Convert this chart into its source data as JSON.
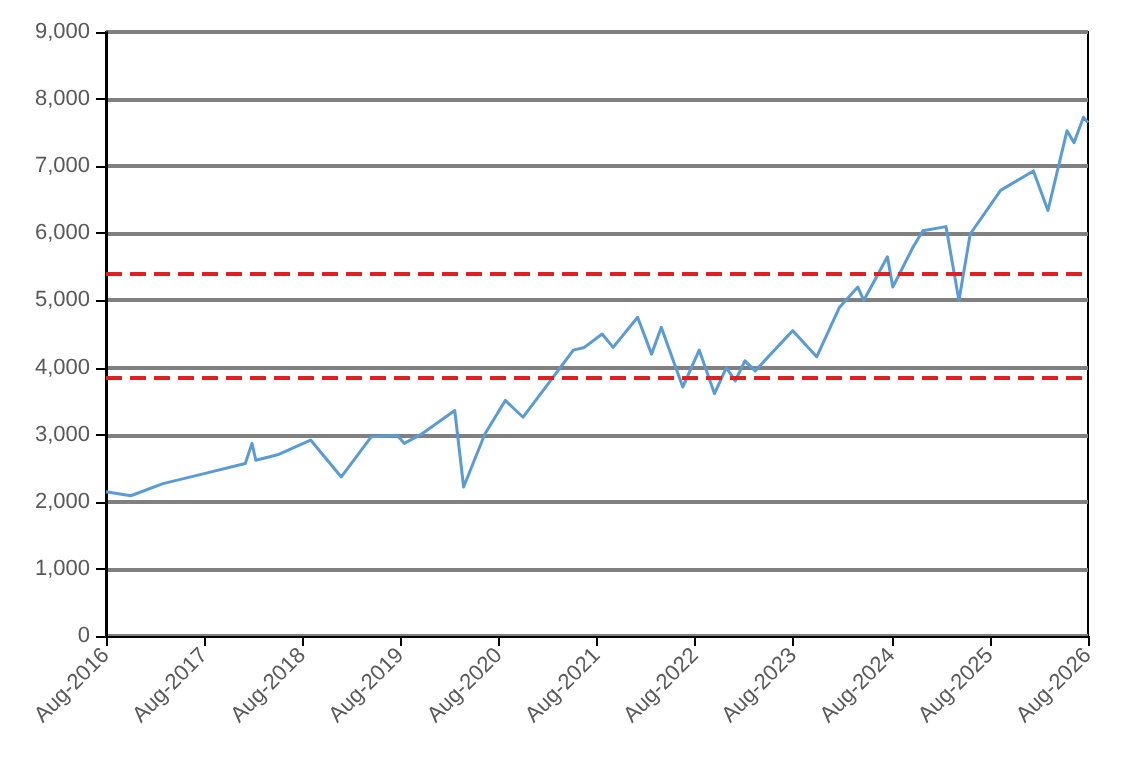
{
  "chart_data": {
    "type": "line",
    "x": [
      "2016-08-01",
      "2016-11-01",
      "2017-03-01",
      "2017-08-01",
      "2018-01-01",
      "2018-01-26",
      "2018-02-09",
      "2018-05-01",
      "2018-09-01",
      "2018-12-24",
      "2019-04-15",
      "2019-07-20",
      "2019-08-15",
      "2019-10-15",
      "2020-02-19",
      "2020-03-23",
      "2020-06-10",
      "2020-08-25",
      "2020-10-30",
      "2021-02-10",
      "2021-05-05",
      "2021-06-15",
      "2021-08-20",
      "2021-09-30",
      "2021-12-30",
      "2022-02-20",
      "2022-03-28",
      "2022-06-16",
      "2022-08-16",
      "2022-10-12",
      "2022-11-25",
      "2022-12-28",
      "2023-02-02",
      "2023-03-12",
      "2023-07-30",
      "2023-10-27",
      "2024-01-20",
      "2024-03-28",
      "2024-04-19",
      "2024-07-16",
      "2024-08-05",
      "2024-10-20",
      "2024-11-25",
      "2025-02-19",
      "2025-04-08",
      "2025-05-20",
      "2025-09-10",
      "2026-01-10",
      "2026-03-05",
      "2026-05-15",
      "2026-06-10",
      "2026-07-15",
      "2026-08-01"
    ],
    "series": [
      {
        "color": "#5b9bd5",
        "values": [
          2150,
          2090,
          2270,
          2420,
          2570,
          2870,
          2620,
          2700,
          2920,
          2370,
          2970,
          2990,
          2870,
          3000,
          3360,
          2220,
          3010,
          3510,
          3260,
          3810,
          4260,
          4300,
          4500,
          4300,
          4750,
          4200,
          4600,
          3710,
          4260,
          3610,
          4000,
          3800,
          4100,
          3950,
          4550,
          4160,
          4900,
          5200,
          5000,
          5650,
          5200,
          5800,
          6040,
          6100,
          5000,
          5990,
          6640,
          6930,
          6340,
          7530,
          7350,
          7730,
          7650
        ]
      }
    ],
    "ylim": [
      0,
      9000
    ],
    "yticks": [
      {
        "value": 0,
        "label": "0"
      },
      {
        "value": 1000,
        "label": "1,000"
      },
      {
        "value": 2000,
        "label": "2,000"
      },
      {
        "value": 3000,
        "label": "3,000"
      },
      {
        "value": 4000,
        "label": "4,000"
      },
      {
        "value": 5000,
        "label": "5,000"
      },
      {
        "value": 6000,
        "label": "6,000"
      },
      {
        "value": 7000,
        "label": "7,000"
      },
      {
        "value": 8000,
        "label": "8,000"
      },
      {
        "value": 9000,
        "label": "9,000"
      }
    ],
    "xlim": [
      "2016-08-01",
      "2026-08-01"
    ],
    "xticks": [
      {
        "value": "2016-08-01",
        "label": "Aug-2016"
      },
      {
        "value": "2017-08-01",
        "label": "Aug-2017"
      },
      {
        "value": "2018-08-01",
        "label": "Aug-2018"
      },
      {
        "value": "2019-08-01",
        "label": "Aug-2019"
      },
      {
        "value": "2020-08-01",
        "label": "Aug-2020"
      },
      {
        "value": "2021-08-01",
        "label": "Aug-2021"
      },
      {
        "value": "2022-08-01",
        "label": "Aug-2022"
      },
      {
        "value": "2023-08-01",
        "label": "Aug-2023"
      },
      {
        "value": "2024-08-01",
        "label": "Aug-2024"
      },
      {
        "value": "2025-08-01",
        "label": "Aug-2025"
      },
      {
        "value": "2026-08-01",
        "label": "Aug-2026"
      }
    ],
    "ref_lines": [
      {
        "axis": "y",
        "value": 5390,
        "color": "#e02020",
        "line_style": "dashed"
      },
      {
        "axis": "y",
        "value": 3840,
        "color": "#e02020",
        "line_style": "dashed"
      }
    ],
    "grid": "y",
    "marker": "none",
    "line_style": "solid"
  }
}
